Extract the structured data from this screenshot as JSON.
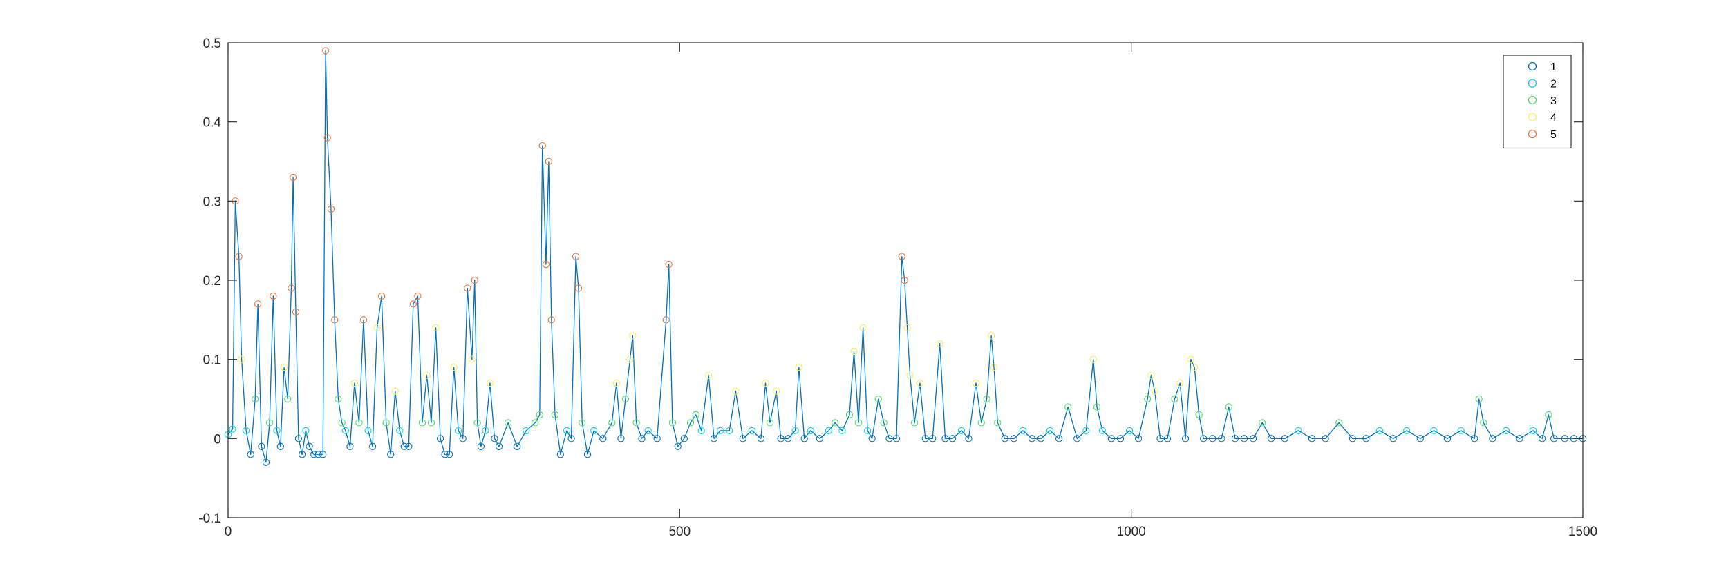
{
  "chart_data": {
    "type": "line",
    "title": "",
    "xlabel": "",
    "ylabel": "",
    "xlim": [
      0,
      1500
    ],
    "ylim": [
      -0.1,
      0.5
    ],
    "xticks": [
      0,
      500,
      1000,
      1500
    ],
    "yticks": [
      -0.1,
      0,
      0.1,
      0.2,
      0.3,
      0.4,
      0.5
    ],
    "xtick_labels": [
      "0",
      "500",
      "1000",
      "1500"
    ],
    "ytick_labels": [
      "-0.1",
      "0",
      "0.1",
      "0.2",
      "0.3",
      "0.4",
      "0.5"
    ],
    "grid": false,
    "box": true,
    "legend": {
      "position": "top-right",
      "entries": [
        {
          "label": "1",
          "color": "#0072bd"
        },
        {
          "label": "2",
          "color": "#00d7e6"
        },
        {
          "label": "3",
          "color": "#4fdc6f"
        },
        {
          "label": "4",
          "color": "#f5f05a"
        },
        {
          "label": "5",
          "color": "#e8743b"
        }
      ]
    },
    "line_color": "#0072bd",
    "series": [
      {
        "label": "1",
        "marker": "o",
        "points": [
          [
            0,
            0.005
          ],
          [
            5,
            0.012
          ],
          [
            8,
            0.3
          ],
          [
            12,
            0.23
          ],
          [
            15,
            0.1
          ],
          [
            20,
            0.01
          ],
          [
            25,
            -0.02
          ],
          [
            30,
            0.05
          ],
          [
            33,
            0.17
          ],
          [
            37,
            -0.01
          ],
          [
            42,
            -0.03
          ],
          [
            46,
            0.02
          ],
          [
            50,
            0.18
          ],
          [
            54,
            0.01
          ],
          [
            58,
            -0.01
          ],
          [
            62,
            0.09
          ],
          [
            66,
            0.05
          ],
          [
            70,
            0.19
          ],
          [
            72,
            0.33
          ],
          [
            75,
            0.16
          ],
          [
            78,
            0.0
          ],
          [
            82,
            -0.02
          ],
          [
            86,
            0.01
          ],
          [
            90,
            -0.01
          ],
          [
            95,
            -0.02
          ],
          [
            100,
            -0.02
          ],
          [
            105,
            -0.02
          ],
          [
            108,
            0.49
          ],
          [
            110,
            0.38
          ],
          [
            114,
            0.29
          ],
          [
            118,
            0.15
          ],
          [
            122,
            0.05
          ],
          [
            126,
            0.02
          ],
          [
            130,
            0.01
          ],
          [
            135,
            -0.01
          ],
          [
            140,
            0.07
          ],
          [
            145,
            0.02
          ],
          [
            150,
            0.15
          ],
          [
            155,
            0.01
          ],
          [
            160,
            -0.01
          ],
          [
            165,
            0.14
          ],
          [
            170,
            0.18
          ],
          [
            175,
            0.02
          ],
          [
            180,
            -0.02
          ],
          [
            185,
            0.06
          ],
          [
            190,
            0.01
          ],
          [
            195,
            -0.01
          ],
          [
            200,
            -0.01
          ],
          [
            205,
            0.17
          ],
          [
            210,
            0.18
          ],
          [
            215,
            0.02
          ],
          [
            220,
            0.08
          ],
          [
            225,
            0.02
          ],
          [
            230,
            0.14
          ],
          [
            235,
            0.0
          ],
          [
            240,
            -0.02
          ],
          [
            245,
            -0.02
          ],
          [
            250,
            0.09
          ],
          [
            255,
            0.01
          ],
          [
            260,
            0.0
          ],
          [
            265,
            0.19
          ],
          [
            270,
            0.1
          ],
          [
            273,
            0.2
          ],
          [
            276,
            0.02
          ],
          [
            280,
            -0.01
          ],
          [
            285,
            0.01
          ],
          [
            290,
            0.07
          ],
          [
            295,
            0.0
          ],
          [
            300,
            -0.01
          ],
          [
            310,
            0.02
          ],
          [
            320,
            -0.01
          ],
          [
            330,
            0.01
          ],
          [
            340,
            0.02
          ],
          [
            345,
            0.03
          ],
          [
            348,
            0.37
          ],
          [
            352,
            0.22
          ],
          [
            355,
            0.35
          ],
          [
            358,
            0.15
          ],
          [
            362,
            0.03
          ],
          [
            368,
            -0.02
          ],
          [
            375,
            0.01
          ],
          [
            380,
            0.0
          ],
          [
            385,
            0.23
          ],
          [
            388,
            0.19
          ],
          [
            392,
            0.02
          ],
          [
            398,
            -0.02
          ],
          [
            405,
            0.01
          ],
          [
            415,
            0.0
          ],
          [
            425,
            0.02
          ],
          [
            430,
            0.07
          ],
          [
            435,
            0.0
          ],
          [
            440,
            0.05
          ],
          [
            445,
            0.1
          ],
          [
            448,
            0.13
          ],
          [
            452,
            0.02
          ],
          [
            458,
            0.0
          ],
          [
            465,
            0.01
          ],
          [
            475,
            0.0
          ],
          [
            485,
            0.15
          ],
          [
            488,
            0.22
          ],
          [
            492,
            0.02
          ],
          [
            498,
            -0.01
          ],
          [
            505,
            0.0
          ],
          [
            512,
            0.02
          ],
          [
            518,
            0.03
          ],
          [
            524,
            0.01
          ],
          [
            532,
            0.08
          ],
          [
            538,
            0.0
          ],
          [
            545,
            0.01
          ],
          [
            555,
            0.01
          ],
          [
            562,
            0.06
          ],
          [
            570,
            0.0
          ],
          [
            580,
            0.01
          ],
          [
            590,
            0.0
          ],
          [
            595,
            0.07
          ],
          [
            600,
            0.02
          ],
          [
            607,
            0.06
          ],
          [
            612,
            0.0
          ],
          [
            620,
            0.0
          ],
          [
            628,
            0.01
          ],
          [
            632,
            0.09
          ],
          [
            638,
            0.0
          ],
          [
            645,
            0.01
          ],
          [
            655,
            0.0
          ],
          [
            665,
            0.01
          ],
          [
            672,
            0.02
          ],
          [
            680,
            0.01
          ],
          [
            688,
            0.03
          ],
          [
            693,
            0.11
          ],
          [
            698,
            0.02
          ],
          [
            703,
            0.14
          ],
          [
            708,
            0.01
          ],
          [
            713,
            0.0
          ],
          [
            720,
            0.05
          ],
          [
            726,
            0.02
          ],
          [
            732,
            0.0
          ],
          [
            740,
            0.0
          ],
          [
            746,
            0.23
          ],
          [
            749,
            0.2
          ],
          [
            752,
            0.14
          ],
          [
            755,
            0.08
          ],
          [
            760,
            0.02
          ],
          [
            766,
            0.07
          ],
          [
            772,
            0.0
          ],
          [
            780,
            0.0
          ],
          [
            788,
            0.12
          ],
          [
            794,
            0.0
          ],
          [
            802,
            0.0
          ],
          [
            812,
            0.01
          ],
          [
            820,
            0.0
          ],
          [
            828,
            0.07
          ],
          [
            834,
            0.02
          ],
          [
            840,
            0.05
          ],
          [
            845,
            0.13
          ],
          [
            848,
            0.09
          ],
          [
            852,
            0.02
          ],
          [
            860,
            0.0
          ],
          [
            870,
            0.0
          ],
          [
            880,
            0.01
          ],
          [
            890,
            0.0
          ],
          [
            900,
            0.0
          ],
          [
            910,
            0.01
          ],
          [
            920,
            0.0
          ],
          [
            930,
            0.04
          ],
          [
            940,
            0.0
          ],
          [
            950,
            0.01
          ],
          [
            958,
            0.1
          ],
          [
            962,
            0.04
          ],
          [
            968,
            0.01
          ],
          [
            978,
            0.0
          ],
          [
            988,
            0.0
          ],
          [
            998,
            0.01
          ],
          [
            1008,
            0.0
          ],
          [
            1018,
            0.05
          ],
          [
            1022,
            0.08
          ],
          [
            1026,
            0.06
          ],
          [
            1032,
            0.0
          ],
          [
            1040,
            0.0
          ],
          [
            1048,
            0.05
          ],
          [
            1054,
            0.07
          ],
          [
            1060,
            0.0
          ],
          [
            1066,
            0.1
          ],
          [
            1070,
            0.09
          ],
          [
            1075,
            0.03
          ],
          [
            1080,
            0.0
          ],
          [
            1090,
            0.0
          ],
          [
            1100,
            0.0
          ],
          [
            1108,
            0.04
          ],
          [
            1115,
            0.0
          ],
          [
            1125,
            0.0
          ],
          [
            1135,
            0.0
          ],
          [
            1145,
            0.02
          ],
          [
            1155,
            0.0
          ],
          [
            1170,
            0.0
          ],
          [
            1185,
            0.01
          ],
          [
            1200,
            0.0
          ],
          [
            1215,
            0.0
          ],
          [
            1230,
            0.02
          ],
          [
            1245,
            0.0
          ],
          [
            1260,
            0.0
          ],
          [
            1275,
            0.01
          ],
          [
            1290,
            0.0
          ],
          [
            1305,
            0.01
          ],
          [
            1320,
            0.0
          ],
          [
            1335,
            0.01
          ],
          [
            1350,
            0.0
          ],
          [
            1365,
            0.01
          ],
          [
            1380,
            0.0
          ],
          [
            1385,
            0.05
          ],
          [
            1390,
            0.02
          ],
          [
            1400,
            0.0
          ],
          [
            1415,
            0.01
          ],
          [
            1430,
            0.0
          ],
          [
            1445,
            0.01
          ],
          [
            1455,
            0.0
          ],
          [
            1462,
            0.03
          ],
          [
            1468,
            0.0
          ],
          [
            1480,
            0.0
          ],
          [
            1490,
            0.0
          ],
          [
            1500,
            0.0
          ]
        ]
      }
    ]
  }
}
